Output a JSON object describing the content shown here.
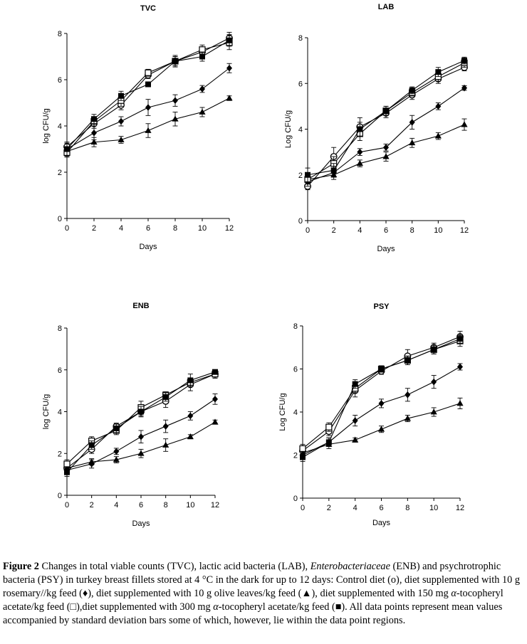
{
  "chart_data": [
    {
      "type": "line",
      "title": "TVC",
      "xlabel": "Days",
      "ylabel": "log CFU/g",
      "xlim": [
        0,
        12
      ],
      "ylim": [
        0,
        8
      ],
      "x_ticks": [
        0,
        2,
        4,
        6,
        8,
        10,
        12
      ],
      "y_ticks": [
        0,
        2,
        4,
        6,
        8
      ],
      "x": [
        0,
        2,
        4,
        6,
        8,
        10,
        12
      ],
      "series": [
        {
          "name": "Control diet",
          "marker": "circle-open",
          "values": [
            3.1,
            4.1,
            4.9,
            6.2,
            6.8,
            7.2,
            7.8
          ],
          "err": [
            0.15,
            0.2,
            0.2,
            0.15,
            0.2,
            0.2,
            0.25
          ]
        },
        {
          "name": "Rosemary 10 g/kg",
          "marker": "diamond",
          "values": [
            3.0,
            3.7,
            4.2,
            4.8,
            5.1,
            5.6,
            6.5
          ],
          "err": [
            0.3,
            0.3,
            0.2,
            0.35,
            0.25,
            0.15,
            0.2
          ]
        },
        {
          "name": "Olive leaves 10 g/kg",
          "marker": "triangle",
          "values": [
            2.9,
            3.3,
            3.4,
            3.8,
            4.3,
            4.6,
            5.2
          ],
          "err": [
            0.2,
            0.2,
            0.15,
            0.3,
            0.3,
            0.2,
            0.1
          ]
        },
        {
          "name": "α-tocopheryl acetate 150 mg/kg",
          "marker": "square-open",
          "values": [
            2.85,
            4.2,
            5.1,
            6.3,
            6.8,
            7.3,
            7.6
          ],
          "err": [
            0.2,
            0.2,
            0.25,
            0.15,
            0.25,
            0.2,
            0.3
          ]
        },
        {
          "name": "α-tocopheryl acetate 300 mg/kg",
          "marker": "square",
          "values": [
            3.0,
            4.3,
            5.3,
            5.8,
            6.8,
            7.0,
            7.7
          ],
          "err": [
            0.3,
            0.2,
            0.2,
            0.1,
            0.2,
            0.2,
            0.25
          ]
        }
      ]
    },
    {
      "type": "line",
      "title": "LAB",
      "xlabel": "Days",
      "ylabel": "Log CFU/g",
      "xlim": [
        0,
        12
      ],
      "ylim": [
        0,
        8
      ],
      "x_ticks": [
        0,
        2,
        4,
        6,
        8,
        10,
        12
      ],
      "y_ticks": [
        0,
        2,
        4,
        6,
        8
      ],
      "x": [
        0,
        2,
        4,
        6,
        8,
        10,
        12
      ],
      "series": [
        {
          "name": "Control diet",
          "marker": "circle-open",
          "values": [
            1.5,
            2.8,
            4.1,
            4.7,
            5.5,
            6.2,
            6.7
          ],
          "err": [
            0.15,
            0.4,
            0.4,
            0.2,
            0.2,
            0.2,
            0.15
          ]
        },
        {
          "name": "Rosemary 10 g/kg",
          "marker": "diamond",
          "values": [
            1.7,
            2.1,
            3.0,
            3.2,
            4.3,
            5.0,
            5.8
          ],
          "err": [
            0.2,
            0.2,
            0.15,
            0.15,
            0.3,
            0.15,
            0.1
          ]
        },
        {
          "name": "Olive leaves 10 g/kg",
          "marker": "triangle",
          "values": [
            1.8,
            2.0,
            2.5,
            2.8,
            3.4,
            3.7,
            4.2
          ],
          "err": [
            0.2,
            0.2,
            0.15,
            0.2,
            0.2,
            0.15,
            0.25
          ]
        },
        {
          "name": "α-tocopheryl acetate 150 mg/kg",
          "marker": "square-open",
          "values": [
            1.8,
            2.5,
            3.8,
            4.8,
            5.6,
            6.3,
            6.9
          ],
          "err": [
            0.2,
            0.3,
            0.3,
            0.2,
            0.15,
            0.2,
            0.2
          ]
        },
        {
          "name": "α-tocopheryl acetate 300 mg/kg",
          "marker": "square",
          "values": [
            2.0,
            2.2,
            4.0,
            4.8,
            5.7,
            6.5,
            7.0
          ],
          "err": [
            0.3,
            0.3,
            0.3,
            0.2,
            0.15,
            0.2,
            0.15
          ]
        }
      ]
    },
    {
      "type": "line",
      "title": "ENB",
      "xlabel": "Days",
      "ylabel": "log CFU/g",
      "xlim": [
        0,
        12
      ],
      "ylim": [
        0,
        8
      ],
      "x_ticks": [
        0,
        2,
        4,
        6,
        8,
        10,
        12
      ],
      "y_ticks": [
        0,
        2,
        4,
        6,
        8
      ],
      "x": [
        0,
        2,
        4,
        6,
        8,
        10,
        12
      ],
      "series": [
        {
          "name": "Control diet",
          "marker": "circle-open",
          "values": [
            1.3,
            2.2,
            3.3,
            4.0,
            4.5,
            5.3,
            5.8
          ],
          "err": [
            0.2,
            0.2,
            0.15,
            0.2,
            0.3,
            0.3,
            0.15
          ]
        },
        {
          "name": "Rosemary 10 g/kg",
          "marker": "diamond",
          "values": [
            1.2,
            1.5,
            2.1,
            2.8,
            3.3,
            3.8,
            4.6
          ],
          "err": [
            0.15,
            0.2,
            0.15,
            0.3,
            0.3,
            0.2,
            0.25
          ]
        },
        {
          "name": "Olive leaves 10 g/kg",
          "marker": "triangle",
          "values": [
            1.3,
            1.6,
            1.7,
            2.0,
            2.4,
            2.8,
            3.5
          ],
          "err": [
            0.2,
            0.15,
            0.15,
            0.2,
            0.3,
            0.1,
            0.1
          ]
        },
        {
          "name": "α-tocopheryl acetate 150 mg/kg",
          "marker": "square-open",
          "values": [
            1.5,
            2.6,
            3.1,
            4.2,
            4.8,
            5.4,
            5.8
          ],
          "err": [
            0.2,
            0.2,
            0.2,
            0.3,
            0.15,
            0.2,
            0.2
          ]
        },
        {
          "name": "α-tocopheryl acetate 300 mg/kg",
          "marker": "square",
          "values": [
            1.1,
            2.4,
            3.2,
            4.0,
            4.7,
            5.5,
            5.9
          ],
          "err": [
            0.2,
            0.2,
            0.2,
            0.25,
            0.2,
            0.3,
            0.1
          ]
        }
      ]
    },
    {
      "type": "line",
      "title": "PSY",
      "xlabel": "Days",
      "ylabel": "Log CFU/g",
      "xlim": [
        0,
        12
      ],
      "ylim": [
        0,
        8
      ],
      "x_ticks": [
        0,
        2,
        4,
        6,
        8,
        10,
        12
      ],
      "y_ticks": [
        0,
        2,
        4,
        6,
        8
      ],
      "x": [
        0,
        2,
        4,
        6,
        8,
        10,
        12
      ],
      "series": [
        {
          "name": "Control diet",
          "marker": "circle-open",
          "values": [
            2.2,
            3.1,
            5.0,
            5.9,
            6.6,
            7.0,
            7.5
          ],
          "err": [
            0.2,
            0.2,
            0.3,
            0.15,
            0.3,
            0.2,
            0.25
          ]
        },
        {
          "name": "Rosemary 10 g/kg",
          "marker": "diamond",
          "values": [
            2.0,
            2.6,
            3.6,
            4.4,
            4.8,
            5.4,
            6.1
          ],
          "err": [
            0.2,
            0.2,
            0.25,
            0.2,
            0.3,
            0.3,
            0.15
          ]
        },
        {
          "name": "Olive leaves 10 g/kg",
          "marker": "triangle",
          "values": [
            2.1,
            2.5,
            2.7,
            3.2,
            3.7,
            4.0,
            4.4
          ],
          "err": [
            0.15,
            0.2,
            0.1,
            0.15,
            0.15,
            0.2,
            0.25
          ]
        },
        {
          "name": "α-tocopheryl acetate 150 mg/kg",
          "marker": "square-open",
          "values": [
            2.3,
            3.3,
            5.1,
            6.0,
            6.4,
            6.9,
            7.3
          ],
          "err": [
            0.2,
            0.2,
            0.2,
            0.15,
            0.2,
            0.2,
            0.25
          ]
        },
        {
          "name": "α-tocopheryl acetate 300 mg/kg",
          "marker": "square",
          "values": [
            1.9,
            2.6,
            5.3,
            6.0,
            6.4,
            6.9,
            7.4
          ],
          "err": [
            0.2,
            0.2,
            0.2,
            0.1,
            0.2,
            0.2,
            0.2
          ]
        }
      ]
    }
  ],
  "caption": {
    "label": "Figure 2",
    "p1": " Changes in total viable counts (TVC), lactic acid bacteria (LAB), ",
    "p2_italic": "Enterobacteriaceae",
    "p3": " (ENB) and psychrotrophic bacteria (PSY) in turkey breast fillets stored at 4 °C in the dark for up to 12 days: Control diet (o), diet supplemented with 10 g rosemary//kg feed (♦), diet supplemented with 10 g olive leaves/kg feed (▲), diet supplemented with 150 mg ",
    "p4_italic": "α",
    "p5": "-tocopheryl acetate/kg feed (□),diet supplemented with 300 mg ",
    "p6_italic": "α",
    "p7": "-tocopheryl acetate/kg feed (■). All data points represent mean values accompanied by standard deviation bars some of which, however, lie within the data point regions."
  }
}
